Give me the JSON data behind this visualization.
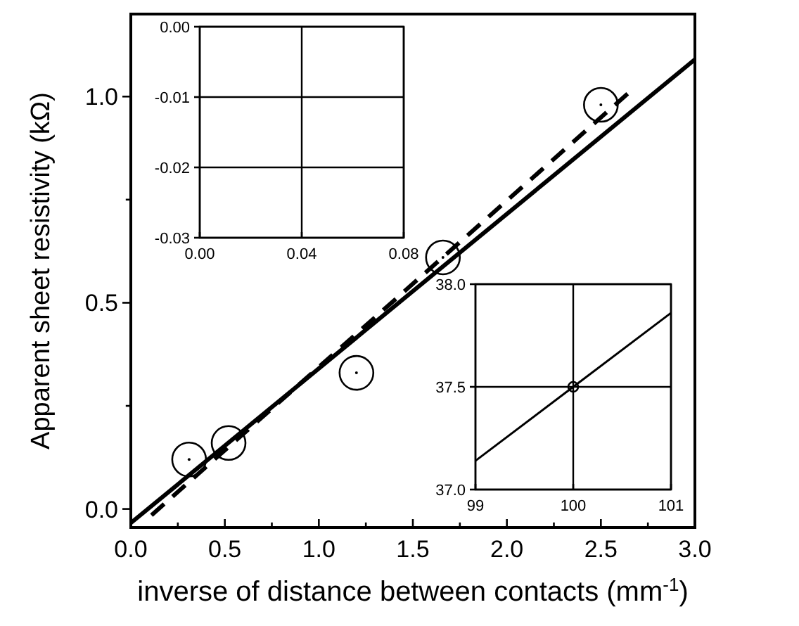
{
  "chart_data": [
    {
      "type": "scatter",
      "xlabel": "inverse of distance between contacts (mm$^{-1}$)",
      "ylabel": "Apparent sheet resistivity (kΩ)",
      "xlim": [
        0,
        3.0
      ],
      "ylim": [
        -0.045,
        1.2
      ],
      "xticks": [
        {
          "value": 0,
          "label": "0.0"
        },
        {
          "value": 0.25,
          "label": null
        },
        {
          "value": 0.5,
          "label": "0.5"
        },
        {
          "value": 0.75,
          "label": null
        },
        {
          "value": 1,
          "label": "1.0"
        },
        {
          "value": 1.25,
          "label": null
        },
        {
          "value": 1.5,
          "label": "1.5"
        },
        {
          "value": 1.75,
          "label": null
        },
        {
          "value": 2,
          "label": "2.0"
        },
        {
          "value": 2.25,
          "label": null
        },
        {
          "value": 2.5,
          "label": "2.5"
        },
        {
          "value": 2.75,
          "label": null
        },
        {
          "value": 3,
          "label": "3.0"
        }
      ],
      "yticks": [
        {
          "value": 0,
          "label": "0.0"
        },
        {
          "value": 0.25,
          "label": null
        },
        {
          "value": 0.5,
          "label": "0.5"
        },
        {
          "value": 0.75,
          "label": null
        },
        {
          "value": 1,
          "label": "1.0"
        }
      ],
      "grid": false,
      "series": [
        {
          "color": "#000000",
          "marker": "circle",
          "x": [
            0.31,
            0.52,
            1.2,
            1.66,
            2.5
          ],
          "values": [
            0.12,
            0.16,
            0.33,
            0.61,
            0.98
          ]
        },
        {
          "type": "line",
          "color": "#000000",
          "line_style": "solid",
          "x": [
            0,
            3.0
          ],
          "values": [
            -0.034,
            1.09
          ]
        },
        {
          "type": "line",
          "color": "#000000",
          "line_style": "dashed",
          "x": [
            0.11,
            2.65
          ],
          "values": [
            -0.015,
            1.01
          ]
        }
      ]
    },
    {
      "type": "line",
      "xlim": [
        0,
        0.08
      ],
      "ylim": [
        -0.03,
        0
      ],
      "xticks": [
        {
          "value": 0,
          "label": "0.00"
        },
        {
          "value": 0.04,
          "label": "0.04"
        },
        {
          "value": 0.08,
          "label": "0.08"
        }
      ],
      "yticks": [
        {
          "value": 0,
          "label": "0.00"
        },
        {
          "value": -0.01,
          "label": "-0.01"
        },
        {
          "value": -0.02,
          "label": "-0.02"
        },
        {
          "value": -0.03,
          "label": "-0.03"
        }
      ],
      "grid": true
    },
    {
      "type": "line",
      "xlim": [
        99,
        101
      ],
      "ylim": [
        37,
        38
      ],
      "xticks": [
        99,
        100,
        101
      ],
      "yticks": [
        {
          "value": 37,
          "label": "37.0"
        },
        37.5,
        {
          "value": 38,
          "label": "38.0"
        }
      ],
      "grid": true,
      "series": [
        {
          "color": "#000000",
          "line_style": "solid",
          "x": [
            99,
            100,
            101
          ],
          "values": [
            37.14,
            37.5,
            37.86
          ]
        },
        {
          "type": "scatter",
          "color": "#000000",
          "marker": "circle",
          "x": [
            100
          ],
          "values": [
            37.5
          ]
        }
      ]
    }
  ]
}
